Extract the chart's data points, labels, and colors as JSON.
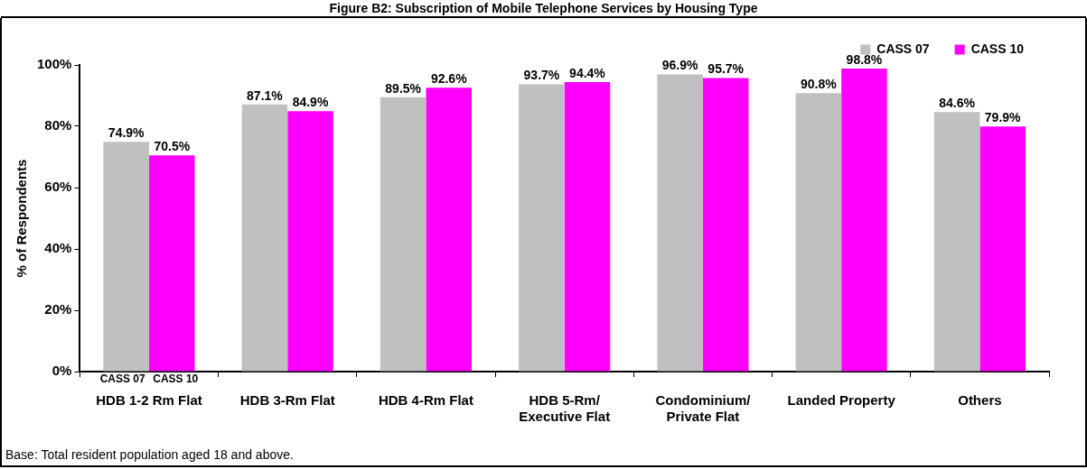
{
  "chart_data": {
    "type": "bar",
    "title": "Figure B2: Subscription of Mobile Telephone Services by Housing Type",
    "ylabel": "% of Respondents",
    "categories": [
      "HDB 1-2 Rm Flat",
      "HDB 3-Rm Flat",
      "HDB 4-Rm Flat",
      "HDB 5-Rm/ Executive Flat",
      "Condominium/ Private Flat",
      "Landed Property",
      "Others"
    ],
    "series": [
      {
        "name": "CASS 07",
        "color": "#c0c0c0",
        "values": [
          74.9,
          87.1,
          89.5,
          93.7,
          96.9,
          90.8,
          84.6
        ]
      },
      {
        "name": "CASS 10",
        "color": "#ff00ff",
        "values": [
          70.5,
          84.9,
          92.6,
          94.4,
          95.7,
          98.8,
          79.9
        ]
      }
    ],
    "value_labels": [
      [
        "74.9%",
        "87.1%",
        "89.5%",
        "93.7%",
        "96.9%",
        "90.8%",
        "84.6%"
      ],
      [
        "70.5%",
        "84.9%",
        "92.6%",
        "94.4%",
        "95.7%",
        "98.8%",
        "79.9%"
      ]
    ],
    "ylim": [
      0,
      100
    ],
    "yticks": [
      {
        "value": 0,
        "label": "0%"
      },
      {
        "value": 20,
        "label": "20%"
      },
      {
        "value": 40,
        "label": "40%"
      },
      {
        "value": 60,
        "label": "60%"
      },
      {
        "value": 80,
        "label": "80%"
      },
      {
        "value": 100,
        "label": "100%"
      }
    ],
    "grid": false,
    "legend": "top right",
    "annotations": [
      "CASS 07",
      "CASS 10",
      "Base: Total resident population aged 18 and above."
    ]
  }
}
